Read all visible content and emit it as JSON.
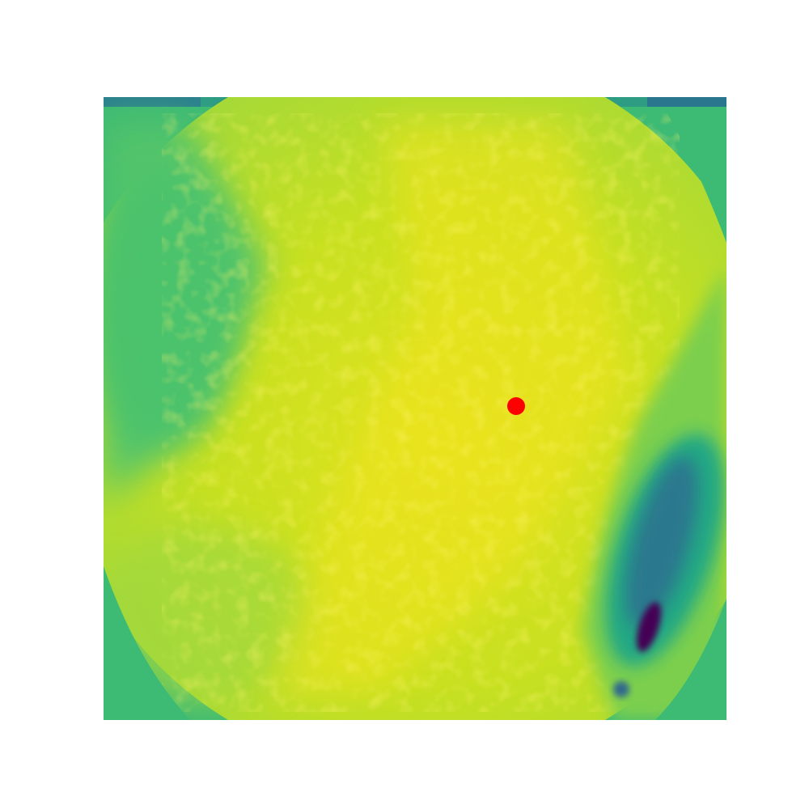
{
  "chart_data": {
    "type": "heatmap",
    "title": "",
    "xlabel": "",
    "ylabel": "",
    "axes_visible": false,
    "grid": false,
    "colormap": "viridis",
    "colormap_stops": [
      "#440154",
      "#3b528b",
      "#21918c",
      "#5ec962",
      "#fde725"
    ],
    "field_shape": "circular region with lighter diagonal band and a dark elongated low-value spot near the lower right",
    "marker": {
      "shape": "circle",
      "color": "#ff0000",
      "location": "near-center"
    }
  }
}
